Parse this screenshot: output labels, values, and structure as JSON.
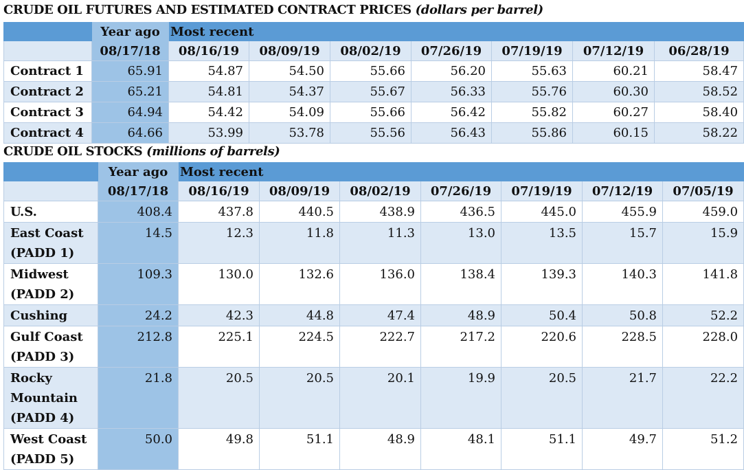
{
  "futures": {
    "title": "CRUDE OIL FUTURES AND ESTIMATED CONTRACT PRICES",
    "unit": "(dollars per barrel)",
    "year_ago_label": "Year ago",
    "most_recent_label": "Most recent",
    "dates": [
      "08/17/18",
      "08/16/19",
      "08/09/19",
      "08/02/19",
      "07/26/19",
      "07/19/19",
      "07/12/19",
      "06/28/19"
    ],
    "rows": [
      {
        "label": "Contract 1",
        "values": [
          "65.91",
          "54.87",
          "54.50",
          "55.66",
          "56.20",
          "55.63",
          "60.21",
          "58.47"
        ]
      },
      {
        "label": "Contract 2",
        "values": [
          "65.21",
          "54.81",
          "54.37",
          "55.67",
          "56.33",
          "55.76",
          "60.30",
          "58.52"
        ]
      },
      {
        "label": "Contract 3",
        "values": [
          "64.94",
          "54.42",
          "54.09",
          "55.66",
          "56.42",
          "55.82",
          "60.27",
          "58.40"
        ]
      },
      {
        "label": "Contract 4",
        "values": [
          "64.66",
          "53.99",
          "53.78",
          "55.56",
          "56.43",
          "55.86",
          "60.15",
          "58.22"
        ]
      }
    ]
  },
  "stocks": {
    "title": "CRUDE OIL STOCKS",
    "unit": "(millions of barrels)",
    "year_ago_label": "Year ago",
    "most_recent_label": "Most recent",
    "dates": [
      "08/17/18",
      "08/16/19",
      "08/09/19",
      "08/02/19",
      "07/26/19",
      "07/19/19",
      "07/12/19",
      "07/05/19"
    ],
    "rows": [
      {
        "label": [
          "U.S."
        ],
        "values": [
          "408.4",
          "437.8",
          "440.5",
          "438.9",
          "436.5",
          "445.0",
          "455.9",
          "459.0"
        ]
      },
      {
        "label": [
          "East Coast",
          "(PADD 1)"
        ],
        "values": [
          "14.5",
          "12.3",
          "11.8",
          "11.3",
          "13.0",
          "13.5",
          "15.7",
          "15.9"
        ]
      },
      {
        "label": [
          "Midwest",
          "(PADD 2)"
        ],
        "values": [
          "109.3",
          "130.0",
          "132.6",
          "136.0",
          "138.4",
          "139.3",
          "140.3",
          "141.8"
        ]
      },
      {
        "label": [
          "Cushing"
        ],
        "values": [
          "24.2",
          "42.3",
          "44.8",
          "47.4",
          "48.9",
          "50.4",
          "50.8",
          "52.2"
        ]
      },
      {
        "label": [
          "Gulf Coast",
          "(PADD 3)"
        ],
        "values": [
          "212.8",
          "225.1",
          "224.5",
          "222.7",
          "217.2",
          "220.6",
          "228.5",
          "228.0"
        ]
      },
      {
        "label": [
          "Rocky",
          "Mountain",
          "(PADD 4)"
        ],
        "values": [
          "21.8",
          "20.5",
          "20.5",
          "20.1",
          "19.9",
          "20.5",
          "21.7",
          "22.2"
        ]
      },
      {
        "label": [
          "West Coast",
          "(PADD 5)"
        ],
        "values": [
          "50.0",
          "49.8",
          "51.1",
          "48.9",
          "48.1",
          "51.1",
          "49.7",
          "51.2"
        ]
      }
    ]
  },
  "colors": {
    "header_band": "#5b9bd5",
    "year_ago_column": "#9dc3e6",
    "row_shade": "#dce8f5",
    "grid": "#b9cde4"
  }
}
